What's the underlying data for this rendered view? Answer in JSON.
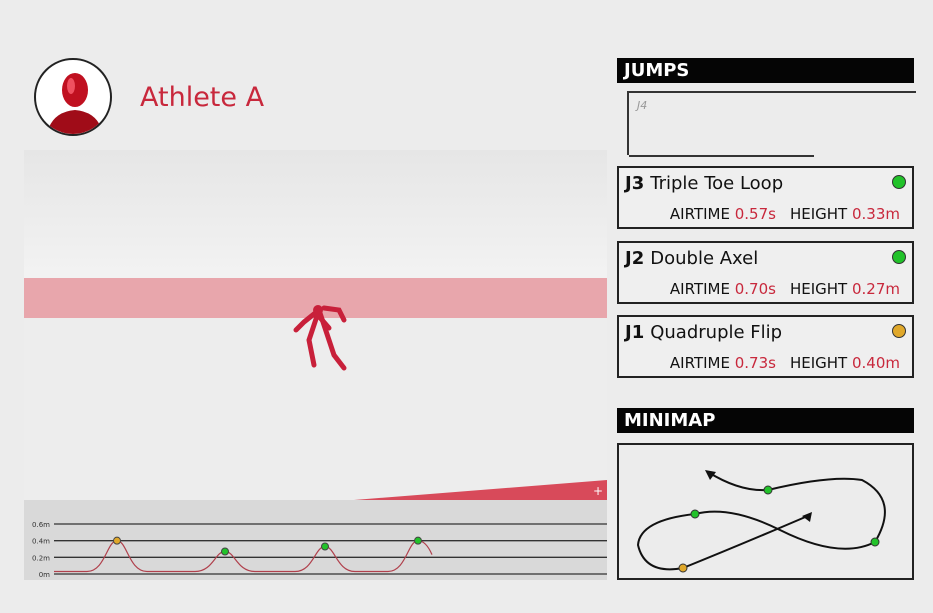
{
  "athlete": {
    "name": "Athlete A"
  },
  "jumps_panel": {
    "title": "JUMPS",
    "placeholder_glyph": "J4",
    "items": [
      {
        "id": "J3",
        "name": "Triple Toe Loop",
        "airtime_label": "AIRTIME",
        "airtime": "0.57s",
        "height_label": "HEIGHT",
        "height": "0.33m",
        "status_color": "#22c22a"
      },
      {
        "id": "J2",
        "name": "Double Axel",
        "airtime_label": "AIRTIME",
        "airtime": "0.70s",
        "height_label": "HEIGHT",
        "height": "0.27m",
        "status_color": "#22c22a"
      },
      {
        "id": "J1",
        "name": "Quadruple Flip",
        "airtime_label": "AIRTIME",
        "airtime": "0.73s",
        "height_label": "HEIGHT",
        "height": "0.40m",
        "status_color": "#e0a82a"
      }
    ]
  },
  "minimap": {
    "title": "MINIMAP"
  },
  "chart_data": {
    "type": "line",
    "yticks": [
      "0.6m",
      "0.4m",
      "0.2m",
      "0m"
    ],
    "ylim": [
      0,
      0.6
    ],
    "peaks": [
      {
        "height": 0.4,
        "color": "#e0a82a"
      },
      {
        "height": 0.27,
        "color": "#22c22a"
      },
      {
        "height": 0.33,
        "color": "#22c22a"
      },
      {
        "height": 0.4,
        "color": "#22c22a"
      }
    ],
    "line_color": "#b0404c"
  }
}
